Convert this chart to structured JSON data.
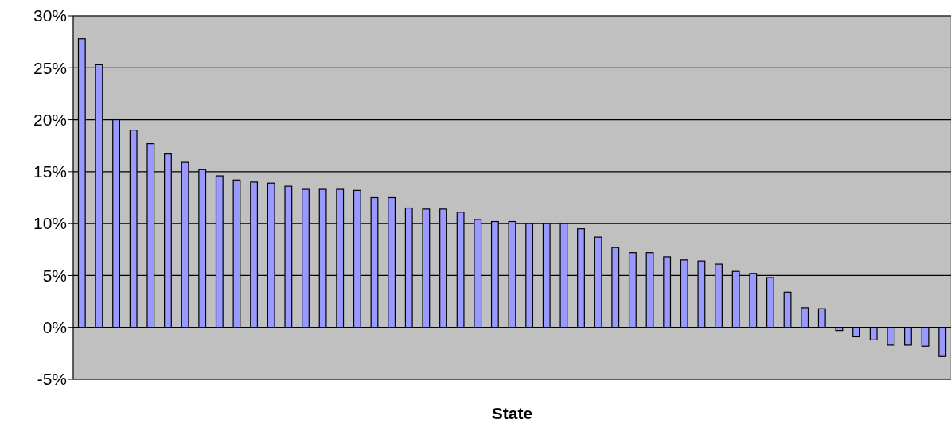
{
  "chart_data": {
    "type": "bar",
    "xlabel": "State",
    "categories": [
      null,
      null,
      null,
      null,
      null,
      null,
      null,
      null,
      null,
      null,
      null,
      null,
      null,
      null,
      null,
      null,
      null,
      null,
      null,
      null,
      null,
      null,
      null,
      null,
      null,
      null,
      null,
      null,
      null,
      null,
      null,
      null,
      null,
      null,
      null,
      null,
      null,
      null,
      null,
      null,
      null,
      null,
      null,
      null,
      null,
      null,
      null,
      null,
      null,
      null,
      null
    ],
    "values": [
      27.8,
      25.3,
      20,
      19,
      17.7,
      16.7,
      15.9,
      15.2,
      14.6,
      14.2,
      14.0,
      13.9,
      13.6,
      13.3,
      13.3,
      13.3,
      13.2,
      12.5,
      12.5,
      11.5,
      11.4,
      11.4,
      11.1,
      10.4,
      10.2,
      10.2,
      10.0,
      10.0,
      10.0,
      9.5,
      8.7,
      7.7,
      7.2,
      7.2,
      6.8,
      6.5,
      6.4,
      6.1,
      5.4,
      5.2,
      4.8,
      3.4,
      1.9,
      1.8,
      -0.3,
      -0.9,
      -1.2,
      -1.7,
      -1.7,
      -1.8,
      -2.8
    ],
    "color": "#9999ff",
    "ylim": [
      -5,
      30
    ],
    "yticks": [
      {
        "value": -5,
        "label": "-5%"
      },
      {
        "value": 0,
        "label": "0%"
      },
      {
        "value": 5,
        "label": "5%"
      },
      {
        "value": 10,
        "label": "10%"
      },
      {
        "value": 15,
        "label": "15%"
      },
      {
        "value": 20,
        "label": "20%"
      },
      {
        "value": 25,
        "label": "25%"
      },
      {
        "value": 30,
        "label": "30%"
      }
    ],
    "grid": "y"
  }
}
